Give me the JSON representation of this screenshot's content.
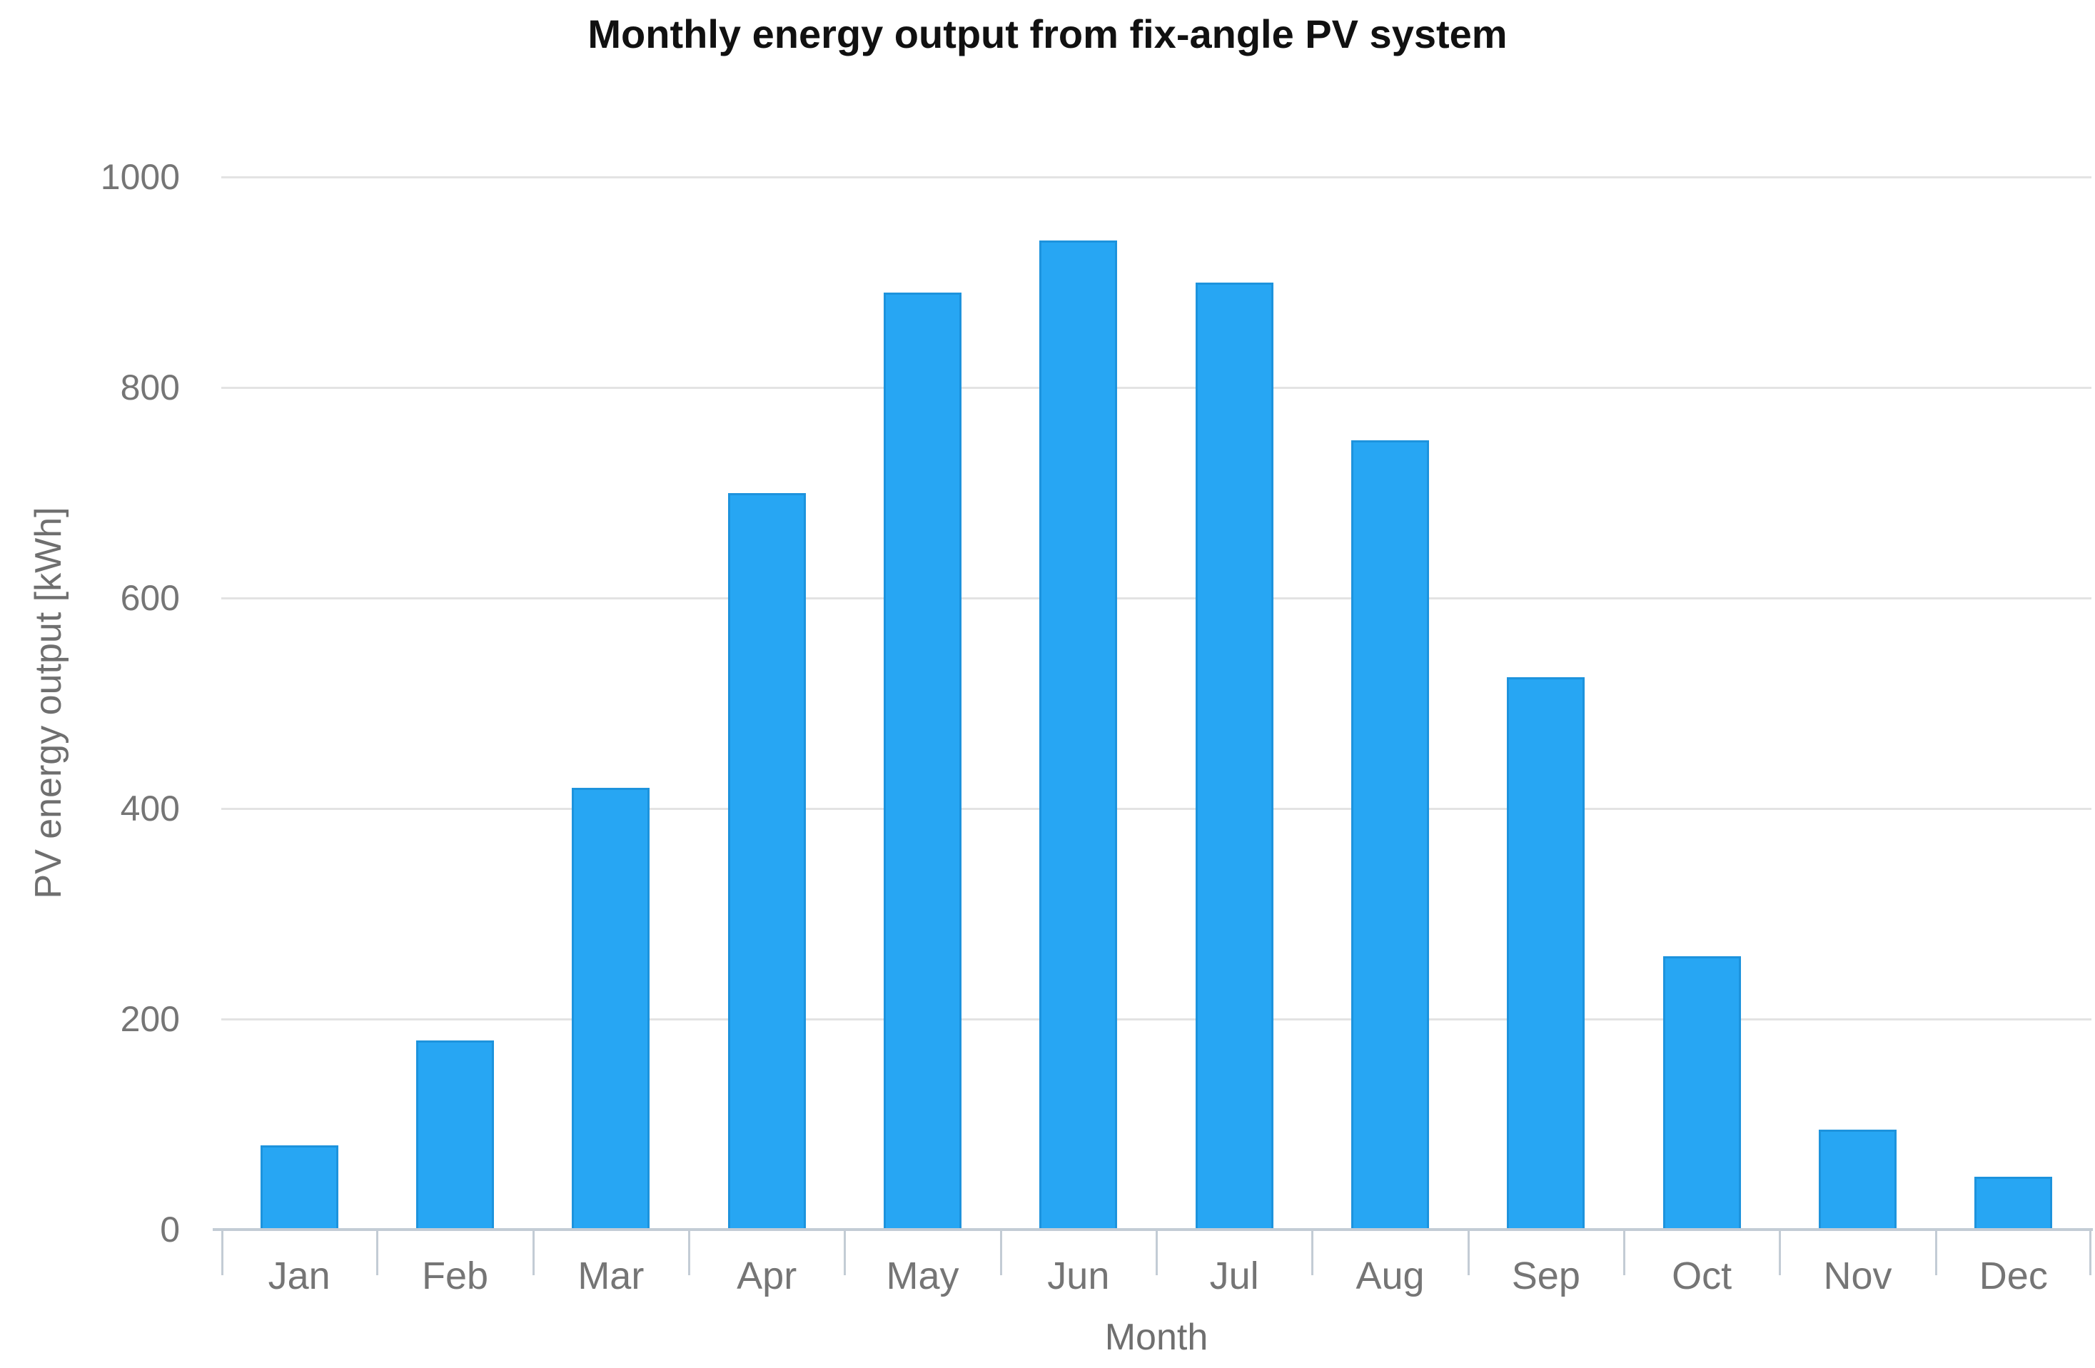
{
  "page": {
    "background": "#ffffff"
  },
  "chart_data": {
    "type": "bar",
    "title": "Monthly energy output from fix-angle PV system",
    "xlabel": "Month",
    "ylabel": "PV energy output [kWh]",
    "categories": [
      "Jan",
      "Feb",
      "Mar",
      "Apr",
      "May",
      "Jun",
      "Jul",
      "Aug",
      "Sep",
      "Oct",
      "Nov",
      "Dec"
    ],
    "values": [
      80,
      180,
      420,
      700,
      890,
      940,
      900,
      750,
      525,
      260,
      95,
      50
    ],
    "ylim": [
      0,
      1000
    ],
    "yticks": [
      0,
      200,
      400,
      600,
      800,
      1000
    ],
    "grid": "horizontal-only",
    "legend": "none",
    "bar_width_fraction_of_slot": 0.5,
    "colors": {
      "bar_fill": "#27a6f3",
      "bar_border": "#1d93dd",
      "gridline": "#e3e3e3",
      "axis_line": "#c3ccd5",
      "tick_text": "#757575",
      "axis_title_text": "#6f6f6f",
      "title_text": "#111111"
    }
  }
}
